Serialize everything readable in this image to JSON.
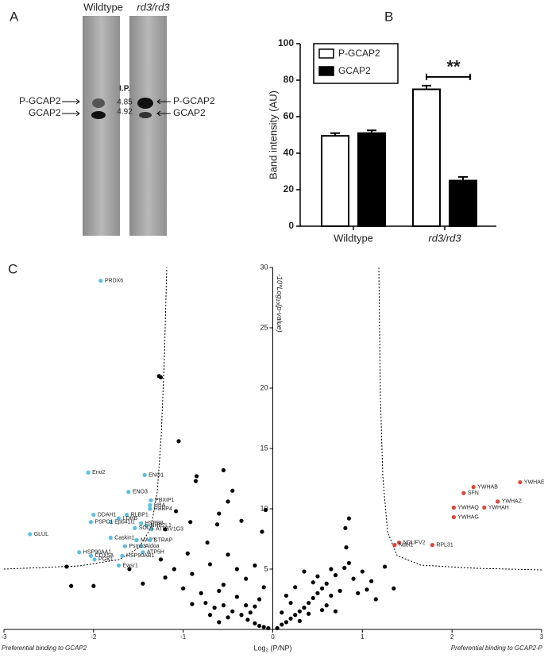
{
  "panel_a": {
    "letter": "A",
    "lanes": [
      "Wildtype",
      "rd3/rd3"
    ],
    "ip_label": "I.P.",
    "ip_values": [
      "4.85",
      "4.92"
    ],
    "bands_left": [
      "P-GCAP2",
      "GCAP2"
    ],
    "bands_right": [
      "P-GCAP2",
      "GCAP2"
    ]
  },
  "chart_data": [
    {
      "type": "bar",
      "letter": "B",
      "categories": [
        "Wildtype",
        "rd3/rd3"
      ],
      "ylabel": "Band intensity (AU)",
      "ylim": [
        0,
        100
      ],
      "yticks": [
        0,
        20,
        40,
        60,
        80,
        100
      ],
      "annotation": "**",
      "series": [
        {
          "name": "P-GCAP2",
          "color": "#ffffff",
          "values": [
            49.5,
            75
          ],
          "errors": [
            1.5,
            2
          ]
        },
        {
          "name": "GCAP2",
          "color": "#000000",
          "values": [
            51,
            25
          ],
          "errors": [
            1.5,
            2
          ]
        }
      ]
    },
    {
      "type": "scatter",
      "letter": "C",
      "xlabel": "Log₂ (P/NP)",
      "ylabel": "-10*Log₁₀(p-value)",
      "left_note": "Preferential binding to GCAP2",
      "right_note": "Preferential binding to GCAP2-P",
      "xlim": [
        -3,
        3
      ],
      "xticks": [
        -3,
        -2,
        -1,
        0,
        1,
        2,
        3
      ],
      "ylim": [
        0,
        30
      ],
      "yticks": [
        5,
        10,
        15,
        20,
        25,
        30
      ],
      "series": [
        {
          "color": "#5bbfe0",
          "x": [
            -1.92,
            -2.06,
            -1.43,
            -1.61,
            -1.36,
            -1.37,
            -1.37,
            -1.63,
            -1.41,
            -1.47,
            -1.72,
            -1.35,
            -1.54,
            -1.52,
            -1.37,
            -1.81,
            -1.47,
            -2.0,
            -2.03,
            -1.81,
            -1.65,
            -1.45,
            -2.16,
            -2.03,
            -1.99,
            -1.72,
            -1.68,
            -2.71
          ],
          "values": [
            28.9,
            13.0,
            12.8,
            11.4,
            10.7,
            10.3,
            10.0,
            9.5,
            8.6,
            8.8,
            9.2,
            8.3,
            8.4,
            7.4,
            7.4,
            8.9,
            6.9,
            9.5,
            8.9,
            7.6,
            6.9,
            6.4,
            6.4,
            6.1,
            5.8,
            5.3,
            6.1,
            7.9
          ],
          "point_labels": [
            "PRDX6",
            "Eno2",
            "ENO1",
            "ENO3",
            "PBXIP1",
            "HBA",
            "RBBP4",
            "RLBP1",
            "NHP2L1",
            "HSPB8",
            "LDHB",
            "ATP6V1G3",
            "SOD1",
            "MAPT",
            "STRAP",
            "Epb41l1",
            "Aldoa",
            "DDAH1",
            "PSPC1",
            "Caskin1",
            "Psmc3",
            "ATP5H",
            "HSP90AA1",
            "COX5A",
            "PGK1",
            "Ewsr1",
            "HSP90AB1",
            "GLUL"
          ]
        },
        {
          "color": "#e0453a",
          "x": [
            2.24,
            2.76,
            2.13,
            2.51,
            2.02,
            2.36,
            2.02,
            1.41,
            1.36,
            1.78
          ],
          "values": [
            11.8,
            12.2,
            11.3,
            10.6,
            10.1,
            10.1,
            9.3,
            7.2,
            7.0,
            7.0
          ],
          "point_labels": [
            "YWHAB",
            "YWHAE",
            "SFN",
            "YWHAZ",
            "YWHAQ",
            "YWHAH",
            "YWHAG",
            "NDUFV2",
            "Ndel1",
            "RPL31"
          ]
        },
        {
          "color": "#000000",
          "x": [
            -1.27,
            -1.25,
            -1.05,
            -0.55,
            -0.85,
            -0.86,
            -1.08,
            -1.2,
            -0.92,
            -0.45,
            -0.5,
            -0.6,
            -0.62,
            -0.35,
            -0.08,
            -0.12,
            -0.73,
            -0.95,
            -1.1,
            -1.25,
            -1.6,
            -2.3,
            -2.0,
            -2.25,
            -1.45,
            -1.2,
            -0.9,
            -0.7,
            -0.5,
            -0.4,
            -0.3,
            -0.2,
            -0.1,
            -0.6,
            -0.8,
            -1.0,
            -0.75,
            -0.55,
            -0.45,
            -0.35,
            -0.28,
            -0.2,
            -0.15,
            -0.1,
            -0.4,
            -0.65,
            -0.9,
            -0.3,
            -0.25,
            -0.5,
            -0.6,
            -0.05,
            -0.7,
            -0.55,
            -0.15,
            -0.2,
            0.05,
            0.1,
            0.15,
            0.2,
            0.25,
            0.3,
            0.35,
            0.4,
            0.45,
            0.5,
            0.55,
            0.6,
            0.65,
            0.7,
            0.8,
            0.85,
            0.9,
            1.0,
            1.05,
            1.1,
            0.75,
            0.6,
            0.4,
            0.3,
            0.2,
            0.5,
            0.35,
            0.25,
            0.15,
            0.82,
            0.81,
            0.85,
            1.25,
            1.35,
            0.95,
            0.55,
            0.1,
            0.65,
            0.45,
            1.15,
            0.7
          ],
          "values": [
            21.0,
            20.9,
            15.6,
            13.2,
            12.7,
            12.3,
            9.8,
            8.3,
            8.9,
            11.5,
            10.6,
            9.6,
            8.7,
            9.0,
            9.9,
            8.1,
            7.2,
            6.3,
            5.0,
            5.8,
            5.0,
            5.2,
            3.6,
            3.6,
            3.8,
            4.3,
            4.6,
            5.4,
            6.2,
            5.0,
            4.2,
            5.3,
            3.5,
            3.2,
            3.0,
            3.4,
            2.2,
            2.0,
            1.5,
            1.2,
            0.8,
            0.5,
            0.3,
            0.2,
            2.7,
            1.8,
            2.1,
            2.0,
            1.4,
            1.0,
            0.6,
            0.1,
            1.2,
            3.7,
            2.5,
            1.9,
            0.1,
            0.4,
            0.6,
            0.9,
            1.2,
            1.5,
            1.8,
            2.2,
            2.6,
            3.0,
            3.4,
            3.8,
            2.8,
            4.5,
            5.1,
            5.5,
            4.2,
            4.8,
            3.3,
            4.0,
            3.2,
            2.0,
            1.3,
            0.7,
            2.2,
            4.4,
            4.8,
            3.5,
            2.8,
            6.8,
            8.4,
            9.2,
            5.2,
            3.4,
            3.0,
            1.6,
            1.4,
            5.0,
            3.9,
            2.5,
            1.5
          ]
        }
      ]
    }
  ]
}
